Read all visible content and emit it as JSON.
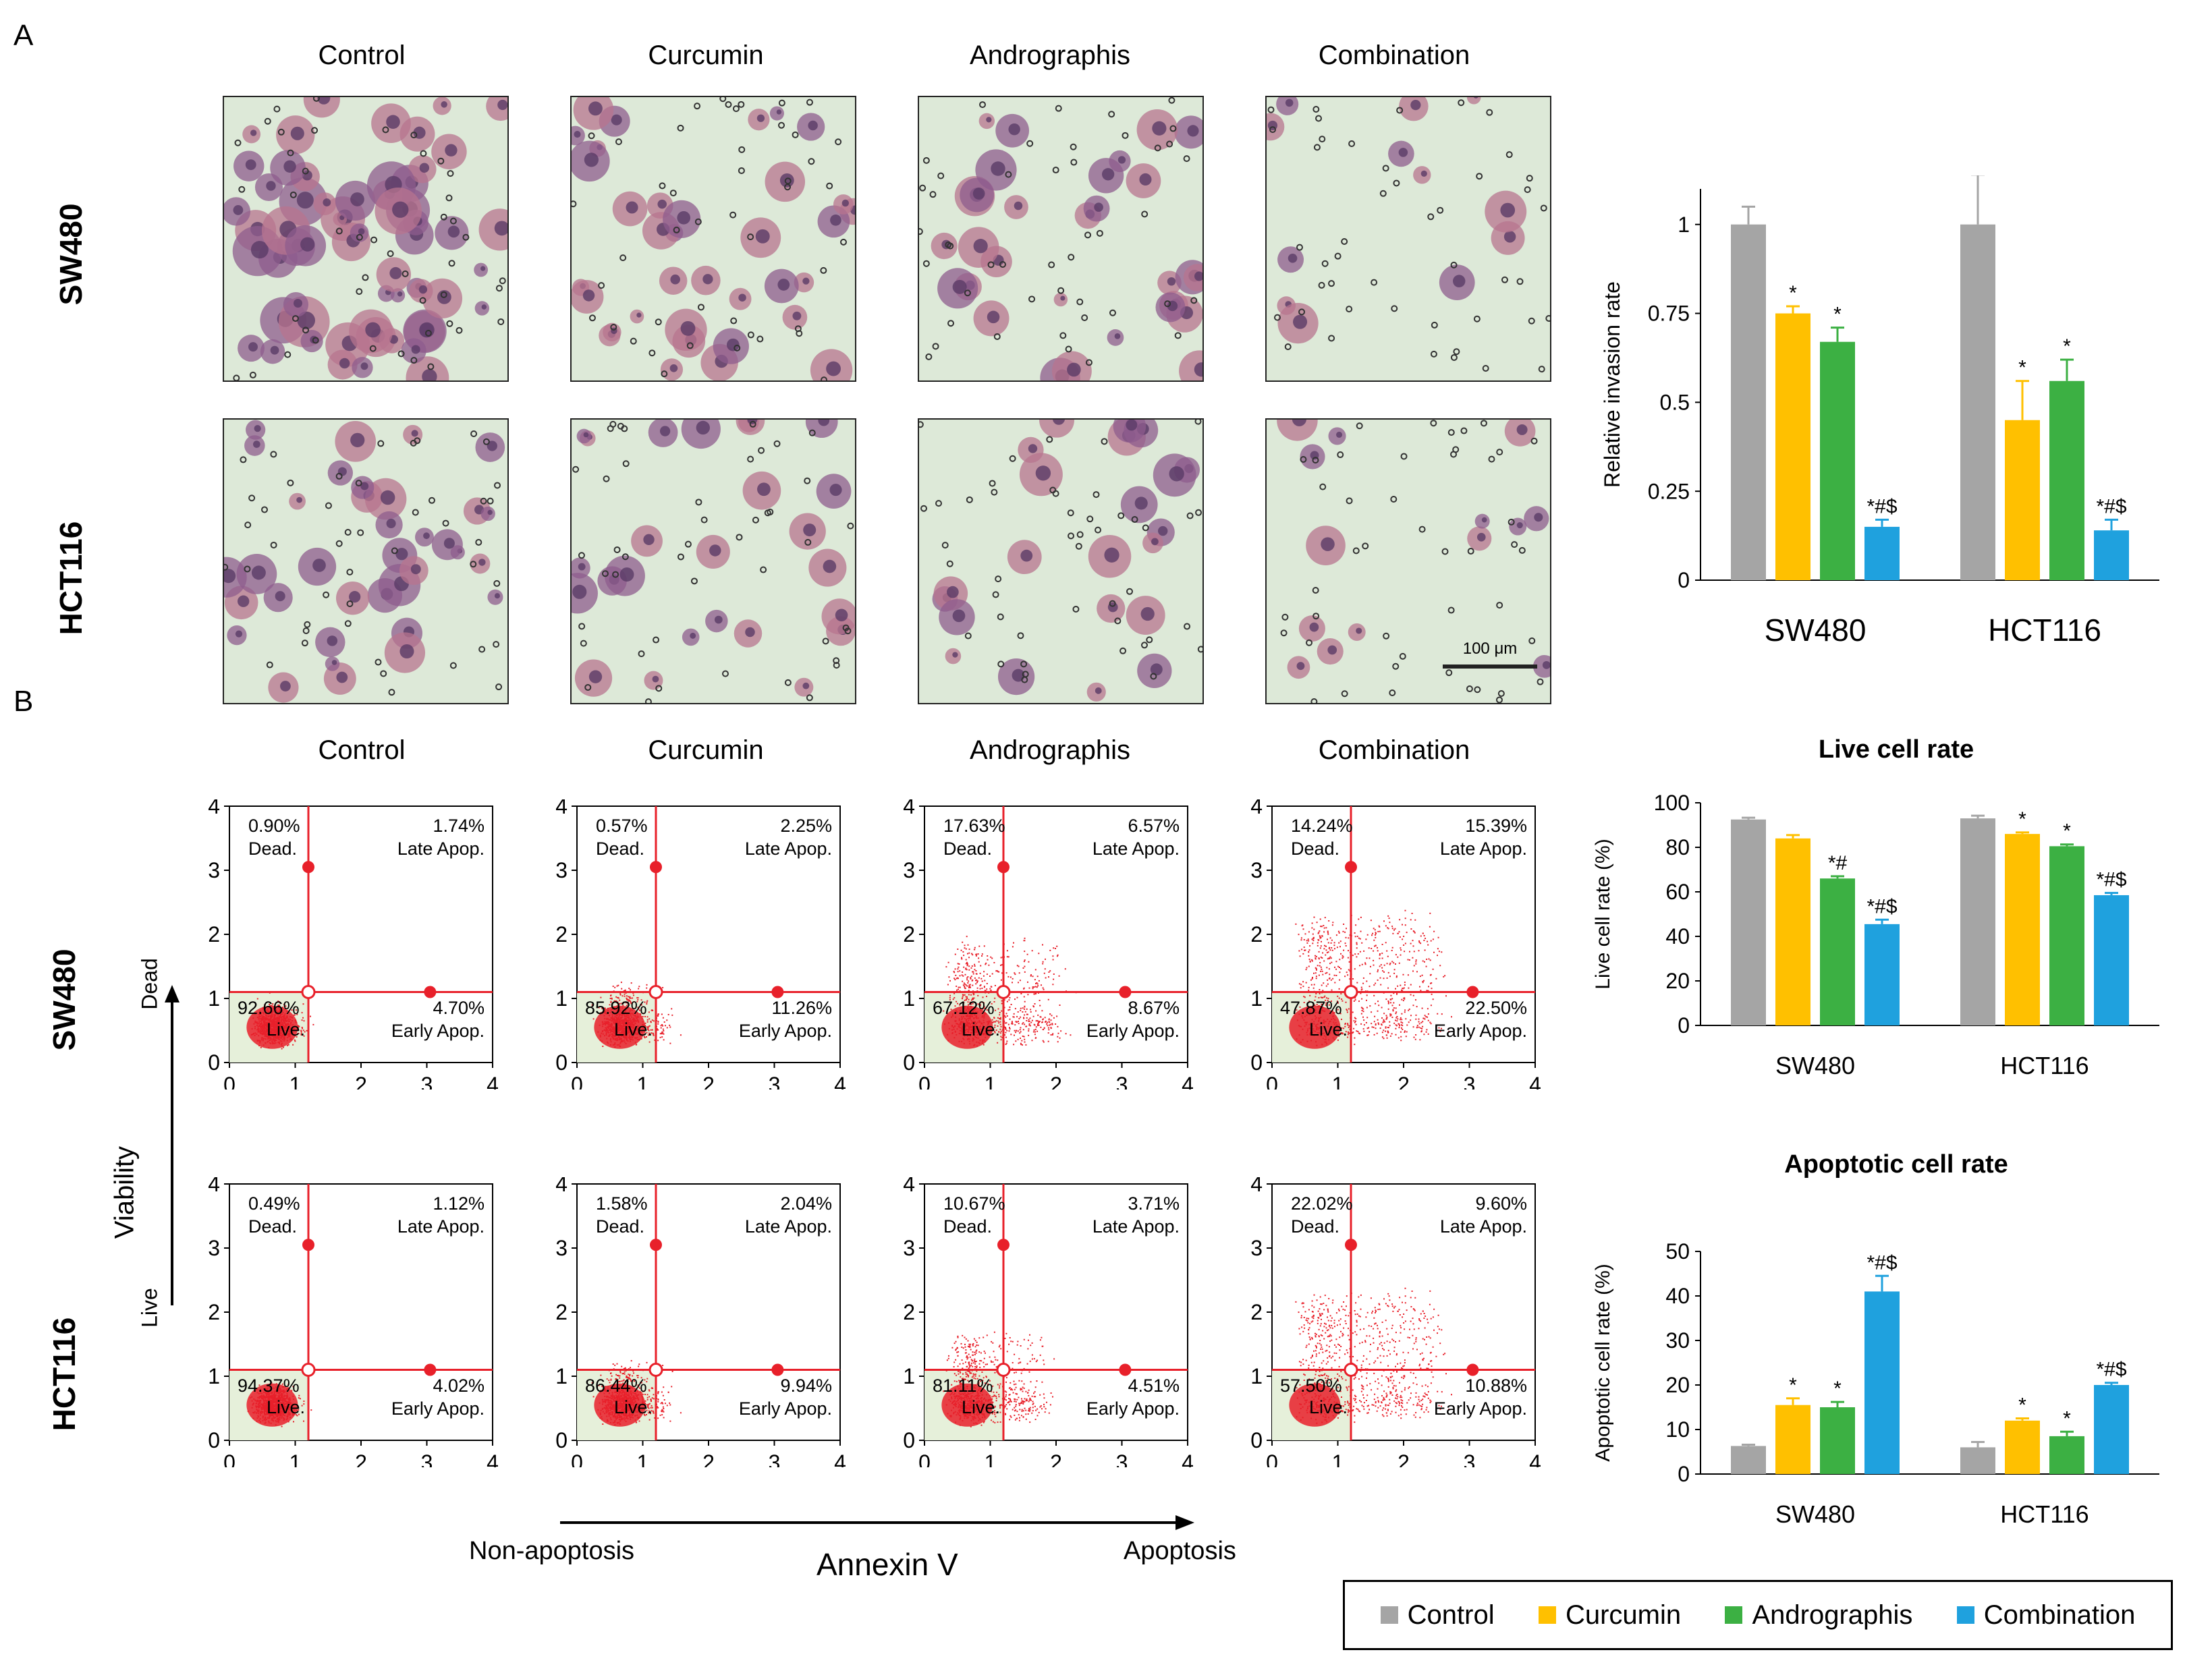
{
  "panel_a": {
    "letter": "A",
    "columns": [
      "Control",
      "Curcumin",
      "Andrographis",
      "Combination"
    ],
    "rows": [
      "SW480",
      "HCT116"
    ],
    "scale_bar": "100 μm"
  },
  "panel_b": {
    "letter": "B",
    "columns": [
      "Control",
      "Curcumin",
      "Andrographis",
      "Combination"
    ],
    "rows": [
      "SW480",
      "HCT116"
    ],
    "viability_label": "Viability",
    "dead_label": "Dead",
    "live_label": "Live",
    "annexin_label": "Annexin V",
    "non_apoptosis_label": "Non-apoptosis",
    "apoptosis_label": "Apoptosis",
    "quadrant_names": {
      "dead": "Dead.",
      "late": "Late Apop.",
      "live": "Live.",
      "early": "Early Apop."
    },
    "flow": [
      [
        {
          "dead": "0.90%",
          "late": "1.74%",
          "live": "92.66%",
          "early": "4.70%"
        },
        {
          "dead": "0.57%",
          "late": "2.25%",
          "live": "85.92%",
          "early": "11.26%"
        },
        {
          "dead": "17.63%",
          "late": "6.57%",
          "live": "67.12%",
          "early": "8.67%"
        },
        {
          "dead": "14.24%",
          "late": "15.39%",
          "live": "47.87%",
          "early": "22.50%"
        }
      ],
      [
        {
          "dead": "0.49%",
          "late": "1.12%",
          "live": "94.37%",
          "early": "4.02%"
        },
        {
          "dead": "1.58%",
          "late": "2.04%",
          "live": "86.44%",
          "early": "9.94%"
        },
        {
          "dead": "10.67%",
          "late": "3.71%",
          "live": "81.11%",
          "early": "4.51%"
        },
        {
          "dead": "22.02%",
          "late": "9.60%",
          "live": "57.50%",
          "early": "10.88%"
        }
      ]
    ],
    "flow_ticks": [
      "0",
      "1",
      "2",
      "3",
      "4"
    ]
  },
  "legend": {
    "items": [
      {
        "label": "Control",
        "color": "#A5A5A5"
      },
      {
        "label": "Curcumin",
        "color": "#FFC000"
      },
      {
        "label": "Andrographis",
        "color": "#3CB043"
      },
      {
        "label": "Combination",
        "color": "#1FA1DE"
      }
    ]
  },
  "chart_data": [
    {
      "type": "bar",
      "title": "",
      "ylabel": "Relative invasion rate",
      "categories": [
        "SW480",
        "HCT116"
      ],
      "ylim": [
        0,
        1.1
      ],
      "yticks": [
        "0",
        "0.25",
        "0.5",
        "0.75",
        "1"
      ],
      "ytick_values": [
        0,
        0.25,
        0.5,
        0.75,
        1
      ],
      "series": [
        {
          "name": "Control",
          "values": [
            1.0,
            1.0
          ],
          "errors": [
            0.05,
            0.14
          ],
          "marks": [
            "",
            ""
          ]
        },
        {
          "name": "Curcumin",
          "values": [
            0.75,
            0.45
          ],
          "errors": [
            0.02,
            0.11
          ],
          "marks": [
            "*",
            "*"
          ]
        },
        {
          "name": "Andrographis",
          "values": [
            0.67,
            0.56
          ],
          "errors": [
            0.04,
            0.06
          ],
          "marks": [
            "*",
            "*"
          ]
        },
        {
          "name": "Combination",
          "values": [
            0.15,
            0.14
          ],
          "errors": [
            0.02,
            0.03
          ],
          "marks": [
            "*#$",
            "*#$"
          ]
        }
      ]
    },
    {
      "type": "bar",
      "title": "Live cell rate",
      "ylabel": "Live cell rate (%)",
      "categories": [
        "SW480",
        "HCT116"
      ],
      "ylim": [
        0,
        100
      ],
      "yticks": [
        "0",
        "20",
        "40",
        "60",
        "80",
        "100"
      ],
      "ytick_values": [
        0,
        20,
        40,
        60,
        80,
        100
      ],
      "series": [
        {
          "name": "Control",
          "values": [
            92.5,
            93.0
          ],
          "errors": [
            0.8,
            1.2
          ],
          "marks": [
            "",
            ""
          ]
        },
        {
          "name": "Curcumin",
          "values": [
            84.0,
            86.0
          ],
          "errors": [
            1.5,
            0.7
          ],
          "marks": [
            "",
            "*"
          ]
        },
        {
          "name": "Andrographis",
          "values": [
            66.0,
            80.5
          ],
          "errors": [
            1.0,
            0.8
          ],
          "marks": [
            "*#",
            "*"
          ]
        },
        {
          "name": "Combination",
          "values": [
            45.5,
            58.5
          ],
          "errors": [
            2.0,
            1.0
          ],
          "marks": [
            "*#$",
            "*#$"
          ]
        }
      ]
    },
    {
      "type": "bar",
      "title": "Apoptotic cell rate",
      "ylabel": "Apoptotic cell rate (%)",
      "categories": [
        "SW480",
        "HCT116"
      ],
      "ylim": [
        0,
        50
      ],
      "yticks": [
        "0",
        "10",
        "20",
        "30",
        "40",
        "50"
      ],
      "ytick_values": [
        0,
        10,
        20,
        30,
        40,
        50
      ],
      "series": [
        {
          "name": "Control",
          "values": [
            6.3,
            6.0
          ],
          "errors": [
            0.3,
            1.2
          ],
          "marks": [
            "",
            ""
          ]
        },
        {
          "name": "Curcumin",
          "values": [
            15.5,
            12.0
          ],
          "errors": [
            1.5,
            0.5
          ],
          "marks": [
            "*",
            "*"
          ]
        },
        {
          "name": "Andrographis",
          "values": [
            15.0,
            8.5
          ],
          "errors": [
            1.2,
            1.0
          ],
          "marks": [
            "*",
            "*"
          ]
        },
        {
          "name": "Combination",
          "values": [
            41.0,
            20.0
          ],
          "errors": [
            3.5,
            0.5
          ],
          "marks": [
            "*#$",
            "*#$"
          ]
        }
      ]
    }
  ]
}
